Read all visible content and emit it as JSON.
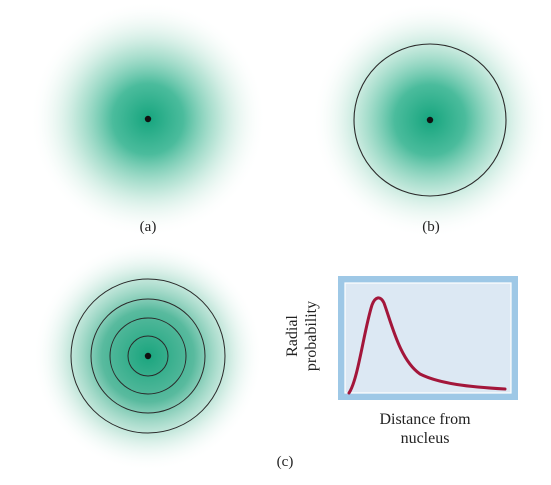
{
  "panels": {
    "a": {
      "caption": "(a)"
    },
    "b": {
      "caption": "(b)"
    },
    "c": {
      "caption": "(c)"
    }
  },
  "graph": {
    "ylabel_line1": "Radial",
    "ylabel_line2": "probability",
    "xlabel_line1": "Distance from",
    "xlabel_line2": "nucleus"
  },
  "colors": {
    "cloud": "#16a57e",
    "curve": "#a3163a",
    "frame_outer": "#9ec8e6",
    "frame_inner": "#dce8f3",
    "ring": "#2a2a2a"
  }
}
